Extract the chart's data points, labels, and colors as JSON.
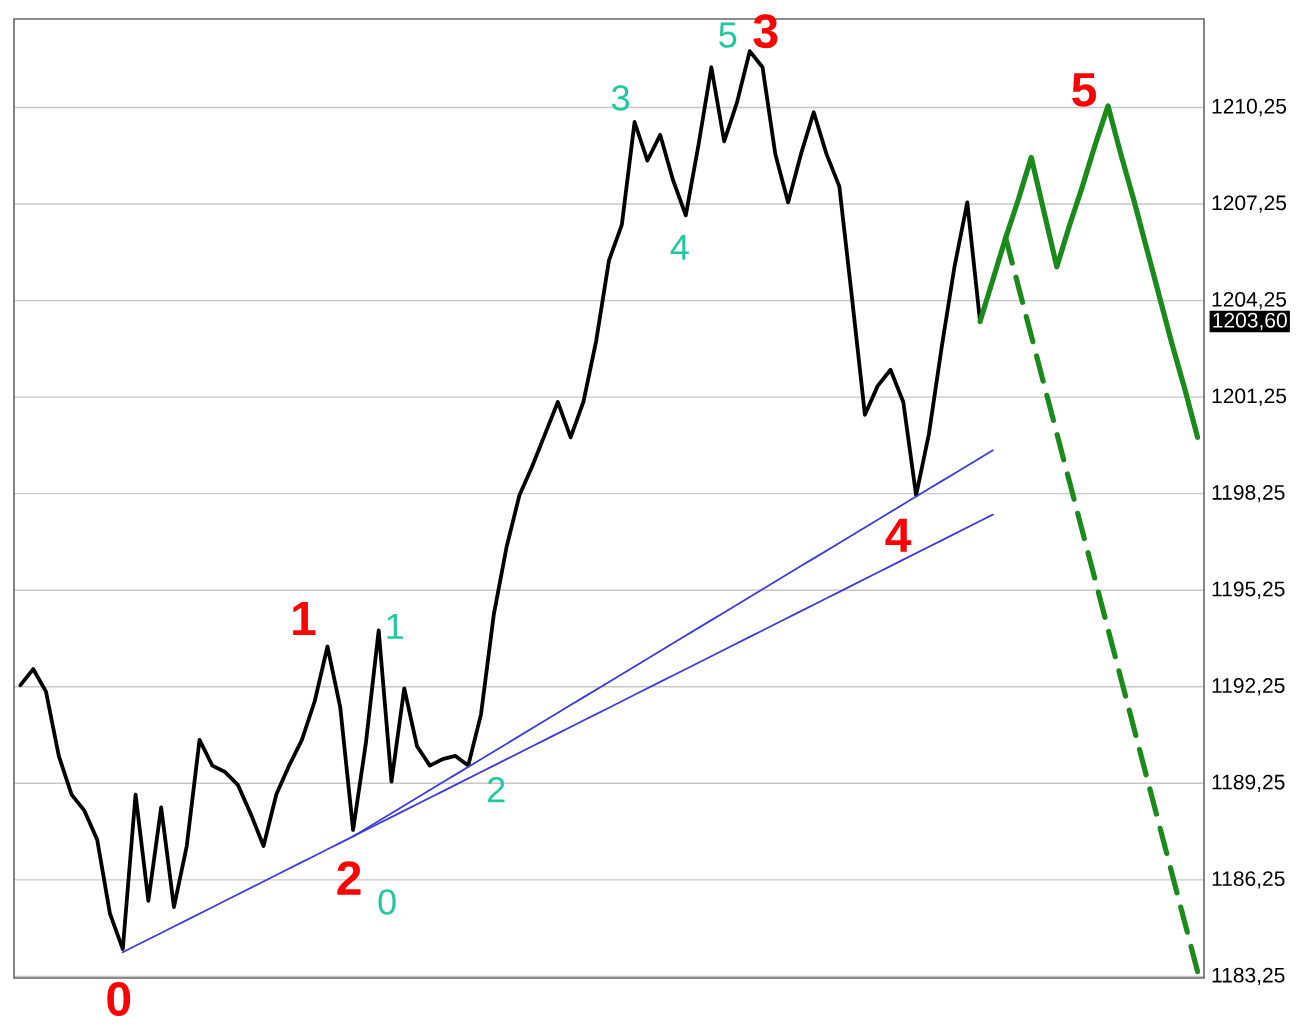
{
  "chart_data": {
    "type": "line",
    "categories": [
      null,
      null,
      null,
      null,
      null,
      null,
      null,
      null,
      null,
      null,
      null,
      null,
      null,
      null,
      null,
      null,
      null,
      null,
      null,
      null,
      null,
      null,
      null,
      null,
      null,
      null,
      null,
      null,
      null,
      null,
      null,
      null,
      null,
      null,
      null,
      null,
      null,
      null,
      null,
      null,
      null,
      null,
      null,
      null,
      null,
      null,
      null,
      null,
      null,
      null,
      null,
      null,
      null,
      null,
      null,
      null,
      null,
      null,
      null,
      null,
      null,
      null,
      null,
      null,
      null,
      null,
      null,
      null,
      null,
      null,
      null,
      null,
      null,
      null,
      null,
      null,
      null,
      null,
      null,
      null,
      null,
      null,
      null,
      null,
      null,
      null,
      null,
      null,
      null,
      null,
      null,
      null,
      null
    ],
    "ylim": [
      1183.2,
      1213
    ],
    "yticks": [
      {
        "value": 1183.25,
        "label": "1183,25"
      },
      {
        "value": 1186.25,
        "label": "1186,25"
      },
      {
        "value": 1189.25,
        "label": "1189,25"
      },
      {
        "value": 1192.25,
        "label": "1192,25"
      },
      {
        "value": 1195.25,
        "label": "1195,25"
      },
      {
        "value": 1198.25,
        "label": "1198,25"
      },
      {
        "value": 1201.25,
        "label": "1201,25"
      },
      {
        "value": 1204.25,
        "label": "1204,25"
      },
      {
        "value": 1207.25,
        "label": "1207,25"
      },
      {
        "value": 1210.25,
        "label": "1210,25"
      }
    ],
    "tick_labels": "y",
    "grid": "y",
    "marker": "none",
    "series": [
      {
        "color": "#000000",
        "values": [
          1192.3,
          1192.8,
          1192.1,
          1190.1,
          1188.9,
          1188.4,
          1187.5,
          1185.2,
          1184.1,
          1188.9,
          1185.6,
          1188.5,
          1185.4,
          1187.3,
          1190.6,
          1189.8,
          1189.6,
          1189.2,
          1188.3,
          1187.3,
          1188.9,
          1189.8,
          1190.6,
          1191.8,
          1193.5,
          1191.6,
          1187.8,
          1190.5,
          1194.0,
          1189.3,
          1192.2,
          1190.4,
          1189.8,
          1190.0,
          1190.1,
          1189.8,
          1191.4,
          1194.5,
          1196.6,
          1198.2,
          1199.1,
          1200.1,
          1201.1,
          1200.0,
          1201.1,
          1203.0,
          1205.5,
          1206.6,
          1209.8,
          1208.6,
          1209.4,
          1208.0,
          1206.9,
          1209.1,
          1211.5,
          1209.2,
          1210.4,
          1212.0,
          1211.5,
          1208.8,
          1207.3,
          1208.8,
          1210.1,
          1208.8,
          1207.8,
          1204.3,
          1200.7,
          1201.6,
          1202.1,
          1201.1,
          1198.2,
          1200.1,
          1202.8,
          1205.3,
          1207.3,
          1203.6,
          null,
          null,
          null,
          null,
          null,
          null,
          null,
          null,
          null,
          null,
          null,
          null,
          null,
          null,
          null,
          null,
          null
        ]
      },
      {
        "type": "line",
        "color": "#3c3cdc",
        "values": [
          null,
          null,
          null,
          null,
          null,
          null,
          null,
          null,
          1184.0,
          1184.2,
          1184.4,
          1184.6,
          1184.8,
          1185.0,
          1185.2,
          1185.4,
          1185.6,
          1185.8,
          1186.0,
          1186.2,
          1186.4,
          1186.6,
          1186.8,
          1187.0,
          1187.2,
          1187.4,
          1187.6,
          1187.8,
          1188.0,
          1188.2,
          1188.4,
          1188.6,
          1188.8,
          1189.0,
          1189.2,
          1189.4,
          1189.6,
          1189.8,
          1190.0,
          1190.2,
          1190.4,
          1190.6,
          1190.8,
          1191.0,
          1191.2,
          1191.4,
          1191.6,
          1191.8,
          1192.0,
          1192.2,
          1192.4,
          1192.6,
          1192.8,
          1193.0,
          1193.2,
          1193.4,
          1193.6,
          1193.8,
          1194.0,
          1194.2,
          1194.4,
          1194.6,
          1194.8,
          1195.0,
          1195.2,
          1195.4,
          1195.6,
          1195.8,
          1196.0,
          1196.2,
          1196.4,
          1196.6,
          1196.8,
          1197.0,
          1197.2,
          1197.4,
          1197.6,
          null,
          null,
          null,
          null,
          null,
          null,
          null,
          null,
          null,
          null,
          null,
          null,
          null,
          null,
          null,
          null
        ]
      },
      {
        "type": "line",
        "color": "#3c3cdc",
        "values": [
          null,
          null,
          null,
          null,
          null,
          null,
          null,
          null,
          null,
          null,
          null,
          null,
          null,
          null,
          null,
          null,
          null,
          null,
          null,
          null,
          null,
          null,
          null,
          null,
          null,
          null,
          1187.6,
          1187.84,
          1188.08,
          1188.32,
          1188.56,
          1188.8,
          1189.04,
          1189.28,
          1189.52,
          1189.76,
          1190.0,
          1190.24,
          1190.48,
          1190.72,
          1190.96,
          1191.2,
          1191.44,
          1191.68,
          1191.92,
          1192.16,
          1192.4,
          1192.64,
          1192.88,
          1193.12,
          1193.36,
          1193.6,
          1193.84,
          1194.08,
          1194.32,
          1194.56,
          1194.8,
          1195.04,
          1195.28,
          1195.52,
          1195.76,
          1196.0,
          1196.24,
          1196.48,
          1196.72,
          1196.96,
          1197.2,
          1197.44,
          1197.68,
          1197.92,
          1198.16,
          1198.4,
          1198.64,
          1198.88,
          1199.12,
          1199.36,
          1199.6,
          null,
          null,
          null,
          null,
          null,
          null,
          null,
          null,
          null,
          null,
          null,
          null,
          null,
          null,
          null,
          null
        ]
      },
      {
        "type": "line",
        "color": "#1a8a1a",
        "values": [
          null,
          null,
          null,
          null,
          null,
          null,
          null,
          null,
          null,
          null,
          null,
          null,
          null,
          null,
          null,
          null,
          null,
          null,
          null,
          null,
          null,
          null,
          null,
          null,
          null,
          null,
          null,
          null,
          null,
          null,
          null,
          null,
          null,
          null,
          null,
          null,
          null,
          null,
          null,
          null,
          null,
          null,
          null,
          null,
          null,
          null,
          null,
          null,
          null,
          null,
          null,
          null,
          null,
          null,
          null,
          null,
          null,
          null,
          null,
          null,
          null,
          null,
          null,
          null,
          null,
          null,
          null,
          null,
          null,
          null,
          null,
          null,
          null,
          null,
          null,
          1203.6,
          1204.9,
          1206.2,
          1207.4,
          1208.7,
          1207.0,
          1205.3,
          1206.6,
          1207.8,
          1209.1,
          1210.3,
          1208.8,
          1207.4,
          1205.9,
          1204.4,
          1202.9,
          1201.5,
          1200.0
        ]
      },
      {
        "type": "line",
        "color": "#1a8a1a",
        "line_style": "dashed",
        "values": [
          null,
          null,
          null,
          null,
          null,
          null,
          null,
          null,
          null,
          null,
          null,
          null,
          null,
          null,
          null,
          null,
          null,
          null,
          null,
          null,
          null,
          null,
          null,
          null,
          null,
          null,
          null,
          null,
          null,
          null,
          null,
          null,
          null,
          null,
          null,
          null,
          null,
          null,
          null,
          null,
          null,
          null,
          null,
          null,
          null,
          null,
          null,
          null,
          null,
          null,
          null,
          null,
          null,
          null,
          null,
          null,
          null,
          null,
          null,
          null,
          null,
          null,
          null,
          null,
          null,
          null,
          null,
          null,
          null,
          null,
          null,
          null,
          null,
          null,
          null,
          null,
          null,
          1206.2,
          1204.68,
          1203.16,
          1201.64,
          1200.12,
          1198.6,
          1197.08,
          1195.56,
          1194.04,
          1192.52,
          1191.0,
          1189.48,
          1187.96,
          1186.44,
          1184.92,
          1183.4
        ]
      }
    ],
    "annotations": [
      "0",
      "1",
      "2",
      "3",
      "4",
      "5",
      "0",
      "1",
      "2",
      "3",
      "4",
      "5",
      "1203,60"
    ]
  }
}
